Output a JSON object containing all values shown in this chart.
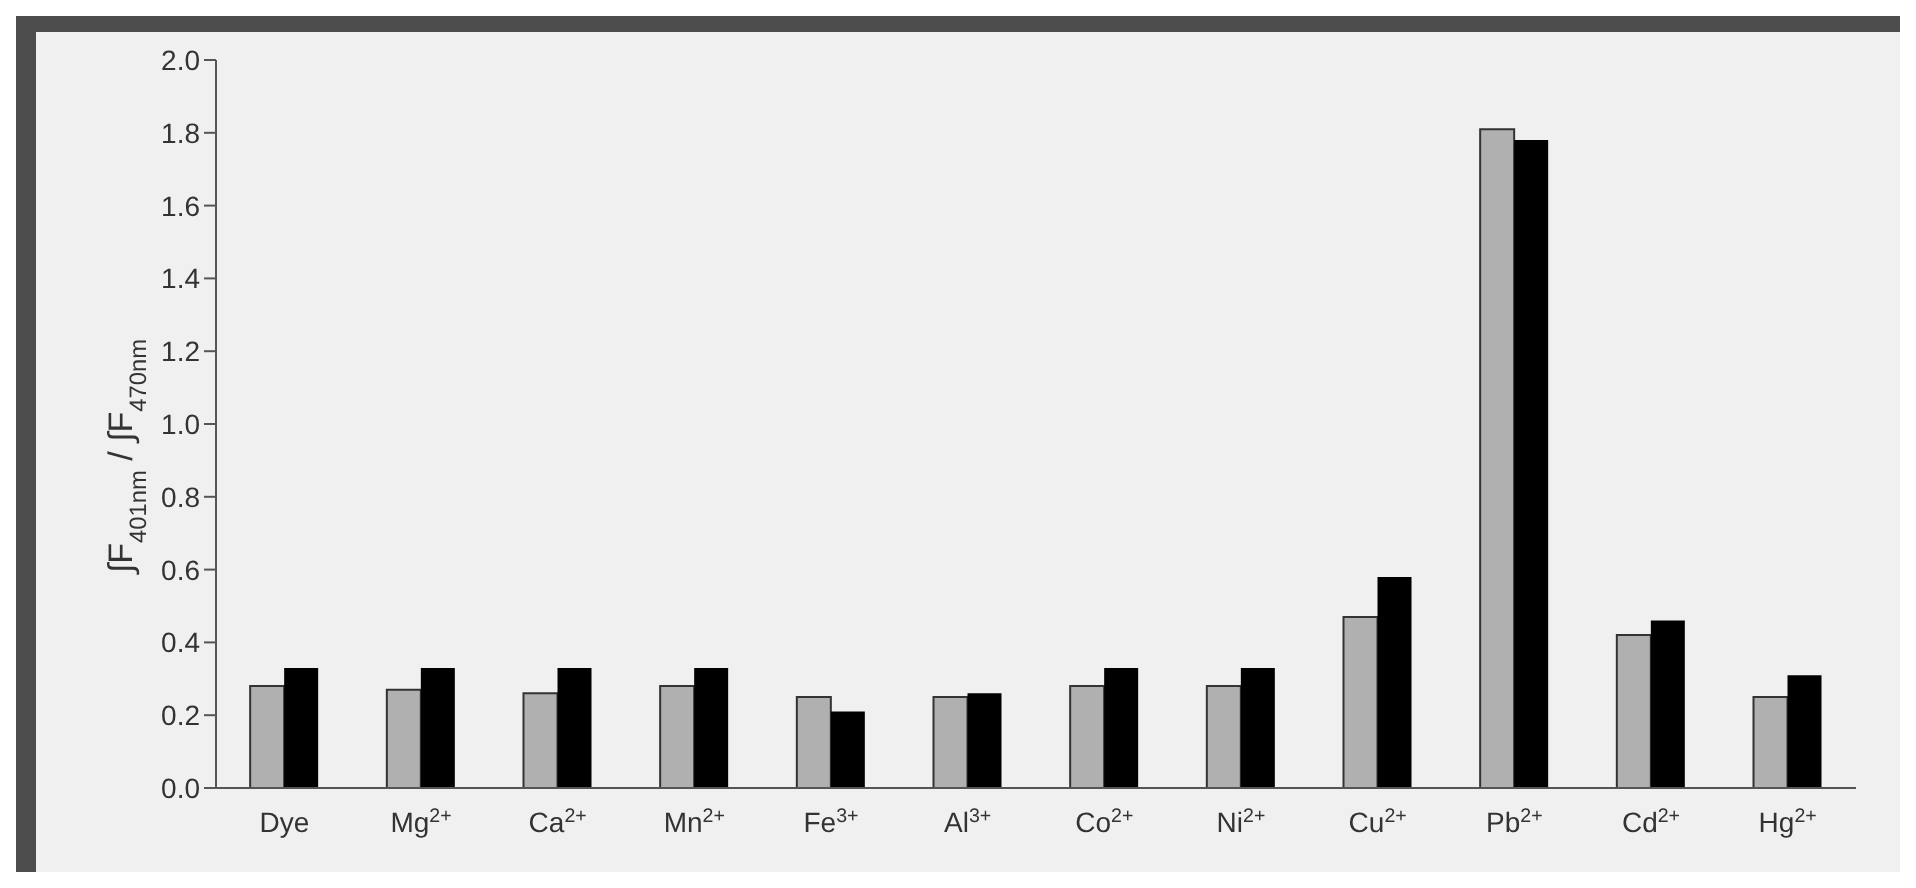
{
  "chart_data": {
    "type": "bar",
    "ylabel": "∫F$_{401nm}$ / ∫F$_{470nm}$",
    "categories": [
      "Dye",
      "Mg$^{2+}$",
      "Ca$^{2+}$",
      "Mn$^{2+}$",
      "Fe$^{3+}$",
      "Al$^{3+}$",
      "Co$^{2+}$",
      "Ni$^{2+}$",
      "Cu$^{2+}$",
      "Pb$^{2+}$",
      "Cd$^{2+}$",
      "Hg$^{2+}$"
    ],
    "series": [
      {
        "color": "#b0b0b0",
        "values": [
          0.28,
          0.27,
          0.26,
          0.28,
          0.25,
          0.25,
          0.28,
          0.28,
          0.47,
          1.81,
          0.42,
          0.25
        ]
      },
      {
        "color": "#000000",
        "values": [
          0.33,
          0.33,
          0.33,
          0.33,
          0.21,
          0.26,
          0.33,
          0.33,
          0.58,
          1.78,
          0.46,
          0.31
        ]
      }
    ],
    "ylim": [
      0,
      2.0
    ],
    "yticks": [
      {
        "value": 0,
        "label": "0.0"
      },
      {
        "value": 0.2,
        "label": "0.2"
      },
      {
        "value": 0.4,
        "label": "0.4"
      },
      {
        "value": 0.6,
        "label": "0.6"
      },
      {
        "value": 0.8,
        "label": "0.8"
      },
      {
        "value": 1.0,
        "label": "1.0"
      },
      {
        "value": 1.2,
        "label": "1.2"
      },
      {
        "value": 1.4,
        "label": "1.4"
      },
      {
        "value": 1.6,
        "label": "1.6"
      },
      {
        "value": 1.8,
        "label": "1.8"
      },
      {
        "value": 2.0,
        "label": "2.0"
      }
    ],
    "grid": false,
    "legend": false
  }
}
